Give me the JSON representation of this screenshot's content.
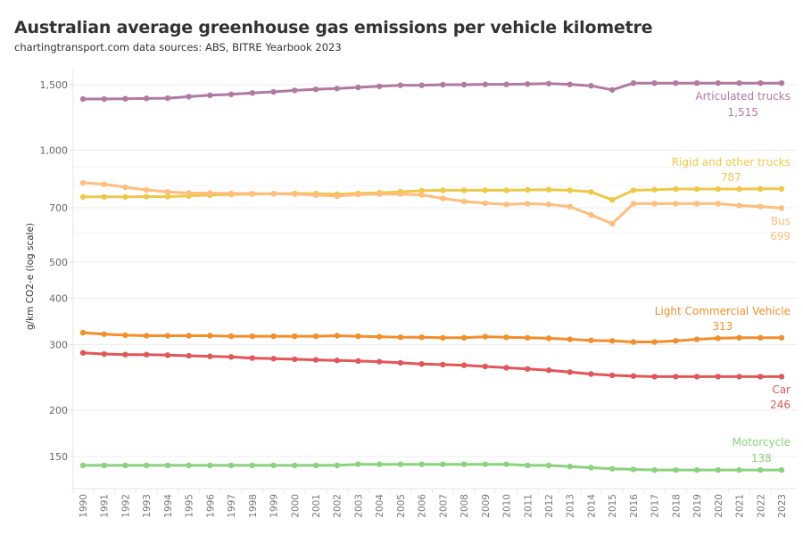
{
  "header": {
    "title": "Australian average greenhouse gas emissions per vehicle kilometre",
    "subtitle": "chartingtransport.com  data sources: ABS, BITRE Yearbook 2023"
  },
  "chart_data": {
    "type": "line",
    "title": "Australian average greenhouse gas emissions per vehicle kilometre",
    "subtitle": "chartingtransport.com  data sources: ABS, BITRE Yearbook 2023",
    "xlabel": "",
    "ylabel": "g/km CO2-e (log scale)",
    "yscale": "log",
    "ylim": [
      130,
      1600
    ],
    "yticks": [
      150,
      200,
      300,
      400,
      500,
      700,
      1000,
      1500
    ],
    "ytick_labels": [
      "150",
      "200",
      "300",
      "400",
      "500",
      "700",
      "1,000",
      "1,500"
    ],
    "grid": true,
    "legend": "direct labels at line ends (right)",
    "x": [
      1990,
      1991,
      1992,
      1993,
      1994,
      1995,
      1996,
      1997,
      1998,
      1999,
      2000,
      2001,
      2002,
      2003,
      2004,
      2005,
      2006,
      2007,
      2008,
      2009,
      2010,
      2011,
      2012,
      2013,
      2014,
      2015,
      2016,
      2017,
      2018,
      2019,
      2020,
      2021,
      2022,
      2023
    ],
    "series": [
      {
        "name": "Articulated trucks",
        "color": "#b07aa1",
        "end_label": "1,515",
        "values": [
          1373,
          1373,
          1375,
          1378,
          1380,
          1393,
          1405,
          1413,
          1425,
          1435,
          1448,
          1458,
          1465,
          1475,
          1485,
          1495,
          1495,
          1500,
          1500,
          1503,
          1503,
          1506,
          1510,
          1503,
          1490,
          1453,
          1515,
          1515,
          1515,
          1515,
          1515,
          1515,
          1515,
          1515
        ]
      },
      {
        "name": "Rigid and other trucks",
        "color": "#edc948",
        "end_label": "787",
        "values": [
          749,
          749,
          749,
          750,
          750,
          753,
          757,
          760,
          762,
          763,
          765,
          764,
          762,
          765,
          768,
          773,
          778,
          780,
          780,
          780,
          780,
          782,
          783,
          780,
          772,
          735,
          780,
          783,
          786,
          786,
          786,
          786,
          787,
          787
        ]
      },
      {
        "name": "Bus",
        "color": "#ffbe7d",
        "end_label": "699",
        "values": [
          817,
          810,
          795,
          782,
          772,
          767,
          767,
          765,
          764,
          764,
          762,
          757,
          752,
          760,
          762,
          762,
          758,
          742,
          728,
          720,
          715,
          718,
          715,
          705,
          670,
          634,
          718,
          718,
          718,
          718,
          718,
          710,
          705,
          699
        ]
      },
      {
        "name": "Light Commercial Vehicle",
        "color": "#f28e2b",
        "end_label": "313",
        "values": [
          323,
          320,
          318,
          317,
          317,
          317,
          317,
          316,
          316,
          316,
          316,
          316,
          317,
          316,
          315,
          314,
          314,
          313,
          313,
          315,
          314,
          313,
          312,
          310,
          308,
          307,
          305,
          305,
          307,
          310,
          312,
          313,
          313,
          313
        ]
      },
      {
        "name": "Car",
        "color": "#e15759",
        "end_label": "246",
        "values": [
          285,
          283,
          282,
          282,
          281,
          280,
          279,
          278,
          276,
          275,
          274,
          273,
          272,
          271,
          270,
          268,
          266,
          265,
          264,
          262,
          260,
          258,
          256,
          253,
          250,
          248,
          247,
          246,
          246,
          246,
          246,
          246,
          246,
          246
        ]
      },
      {
        "name": "Motorcycle",
        "color": "#8cd17d",
        "end_label": "138",
        "values": [
          142,
          142,
          142,
          142,
          142,
          142,
          142,
          142,
          142,
          142,
          142,
          142,
          142,
          143,
          143,
          143,
          143,
          143,
          143,
          143,
          143,
          142,
          142,
          141,
          140,
          139,
          138.5,
          138,
          138,
          138,
          138,
          138,
          138,
          138
        ]
      }
    ]
  }
}
